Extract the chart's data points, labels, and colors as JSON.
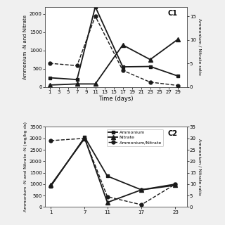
{
  "c1": {
    "days": [
      1,
      7,
      11,
      17,
      23,
      29
    ],
    "ammonium": [
      250,
      200,
      2200,
      550,
      560,
      300
    ],
    "nitrate": [
      50,
      80,
      80,
      1150,
      750,
      1300
    ],
    "ratio": [
      5.0,
      4.5,
      15.0,
      3.5,
      1.0,
      0.3
    ],
    "ylim_left": [
      0,
      2200
    ],
    "ylim_right": [
      0,
      17
    ],
    "yticks_left": [
      0,
      500,
      1000,
      1500,
      2000
    ],
    "yticks_right": [
      0,
      5,
      10,
      15
    ],
    "xticks": [
      1,
      3,
      5,
      7,
      9,
      11,
      13,
      15,
      17,
      19,
      21,
      23,
      25,
      27,
      29
    ],
    "xlim": [
      0,
      31
    ],
    "label": "C1",
    "xlabel": "Time (days)"
  },
  "c2": {
    "days": [
      1,
      7,
      11,
      17,
      23
    ],
    "ammonium": [
      900,
      3050,
      1350,
      750,
      1000
    ],
    "nitrate": [
      950,
      3000,
      200,
      750,
      950
    ],
    "ratio": [
      29.0,
      30.0,
      4.5,
      1.0,
      10.0
    ],
    "ylim_left": [
      0,
      3500
    ],
    "ylim_right": [
      0,
      35
    ],
    "yticks_left": [
      0,
      500,
      1000,
      1500,
      2000,
      2500,
      3000,
      3500
    ],
    "yticks_right": [
      0,
      5,
      10,
      15,
      20,
      25,
      30,
      35
    ],
    "xticks": [
      1,
      7,
      11,
      17,
      23
    ],
    "xlim": [
      0,
      25
    ],
    "label": "C2",
    "xlabel": ""
  },
  "legend_labels": [
    "Ammonium",
    "Nitrate",
    "Ammonium/Nitrate"
  ],
  "ylabel_left_c1": "Ammonium -N and Nitrate",
  "ylabel_left_c2": "Ammonium -N and Nitrate -N (mg/kg ds)",
  "ylabel_right": "Ammonium / Nitrate ratio",
  "bg_color": "#f0f0f0",
  "plot_bg": "#ffffff",
  "line_color": "#1a1a1a"
}
